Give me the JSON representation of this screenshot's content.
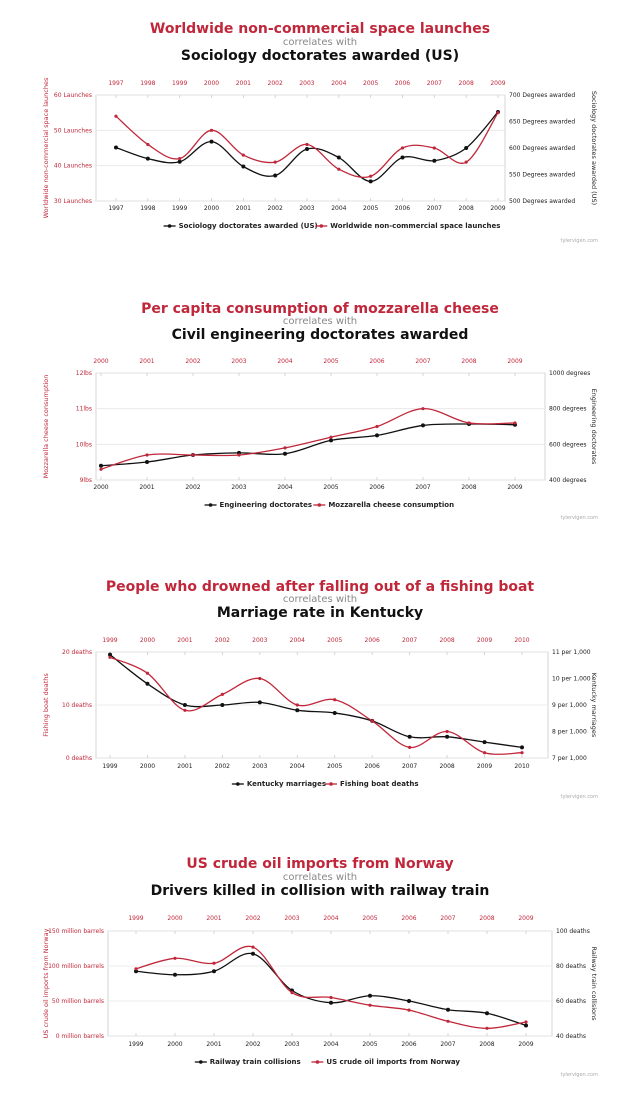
{
  "colors": {
    "red": "#c0273a",
    "black": "#111111",
    "subtitle": "#888888"
  },
  "credit": "tylervigen.com",
  "chart_data": [
    {
      "type": "line",
      "title": "Worldwide non-commercial space launches",
      "subtitle": "correlates with",
      "title2": "Sociology doctorates awarded (US)",
      "categories": [
        "1997",
        "1998",
        "1999",
        "2000",
        "2001",
        "2002",
        "2003",
        "2004",
        "2005",
        "2006",
        "2007",
        "2008",
        "2009"
      ],
      "left_axis": {
        "label": "Worldwide non-commercial space launches",
        "ticks": [
          "30 Launches",
          "40 Launches",
          "50 Launches",
          "60 Launches"
        ],
        "range": [
          30,
          60
        ]
      },
      "right_axis": {
        "label": "Sociology doctorates awarded (US)",
        "ticks": [
          "500 Degrees awarded",
          "550 Degrees awarded",
          "600 Degrees awarded",
          "650 Degrees awarded",
          "700 Degrees awarded"
        ],
        "range": [
          500,
          700
        ]
      },
      "series": [
        {
          "name": "Sociology doctorates awarded (US)",
          "color": "black",
          "axis": "right",
          "values": [
            601,
            580,
            574,
            612,
            565,
            548,
            598,
            582,
            537,
            582,
            576,
            600,
            668
          ]
        },
        {
          "name": "Worldwide non-commercial space launches",
          "color": "red",
          "axis": "left",
          "values": [
            54,
            46,
            42,
            50,
            43,
            41,
            46,
            39,
            37,
            45,
            45,
            41,
            55
          ]
        }
      ]
    },
    {
      "type": "line",
      "title": "Per capita consumption of mozzarella cheese",
      "subtitle": "correlates with",
      "title2": "Civil engineering doctorates awarded",
      "categories": [
        "2000",
        "2001",
        "2002",
        "2003",
        "2004",
        "2005",
        "2006",
        "2007",
        "2008",
        "2009"
      ],
      "left_axis": {
        "label": "Mozzarella cheese consumption",
        "ticks": [
          "9lbs",
          "10lbs",
          "11lbs",
          "12lbs"
        ],
        "range": [
          9,
          12
        ]
      },
      "right_axis": {
        "label": "Engineering doctorates",
        "ticks": [
          "400 degrees",
          "600 degrees",
          "800 degrees",
          "1000 degrees"
        ],
        "range": [
          400,
          1000
        ]
      },
      "series": [
        {
          "name": "Engineering doctorates",
          "color": "black",
          "axis": "right",
          "values": [
            480,
            501,
            540,
            552,
            547,
            622,
            650,
            706,
            714,
            710
          ]
        },
        {
          "name": "Mozzarella cheese consumption",
          "color": "red",
          "axis": "left",
          "values": [
            9.3,
            9.7,
            9.7,
            9.7,
            9.9,
            10.2,
            10.5,
            11.0,
            10.6,
            10.6
          ]
        }
      ]
    },
    {
      "type": "line",
      "title": "People who drowned after falling out of a fishing boat",
      "subtitle": "correlates with",
      "title2": "Marriage rate in Kentucky",
      "categories": [
        "1999",
        "2000",
        "2001",
        "2002",
        "2003",
        "2004",
        "2005",
        "2006",
        "2007",
        "2008",
        "2009",
        "2010"
      ],
      "left_axis": {
        "label": "Fishing boat deaths",
        "ticks": [
          "0 deaths",
          "10 deaths",
          "20 deaths"
        ],
        "range": [
          0,
          20
        ]
      },
      "right_axis": {
        "label": "Kentucky marriages",
        "ticks": [
          "7 per 1,000",
          "8 per 1,000",
          "9 per 1,000",
          "10 per 1,000",
          "11 per 1,000"
        ],
        "range": [
          7,
          11
        ]
      },
      "series": [
        {
          "name": "Kentucky marriages",
          "color": "black",
          "axis": "right",
          "values": [
            10.9,
            9.8,
            9.0,
            9.0,
            9.1,
            8.8,
            8.7,
            8.4,
            7.8,
            7.8,
            7.6,
            7.4
          ]
        },
        {
          "name": "Fishing boat deaths",
          "color": "red",
          "axis": "left",
          "values": [
            19,
            16,
            9,
            12,
            15,
            10,
            11,
            7,
            2,
            5,
            1,
            1
          ]
        }
      ]
    },
    {
      "type": "line",
      "title": "US crude oil imports from Norway",
      "subtitle": "correlates with",
      "title2": "Drivers killed in collision with railway train",
      "categories": [
        "1999",
        "2000",
        "2001",
        "2002",
        "2003",
        "2004",
        "2005",
        "2006",
        "2007",
        "2008",
        "2009"
      ],
      "left_axis": {
        "label": "US crude oil imports from Norway",
        "ticks": [
          "0 million barrels",
          "50 million barrels",
          "100 million barrels",
          "150 million barrels"
        ],
        "range": [
          0,
          150
        ]
      },
      "right_axis": {
        "label": "Railway train collisions",
        "ticks": [
          "40 deaths",
          "60 deaths",
          "80 deaths",
          "100 deaths"
        ],
        "range": [
          40,
          100
        ]
      },
      "series": [
        {
          "name": "Railway train collisions",
          "color": "black",
          "axis": "right",
          "values": [
            77,
            75,
            77,
            87,
            66,
            59,
            63,
            60,
            55,
            53,
            46
          ]
        },
        {
          "name": "US crude oil imports from Norway",
          "color": "red",
          "axis": "left",
          "values": [
            96,
            111,
            104,
            127,
            62,
            55,
            44,
            37,
            21,
            11,
            20
          ]
        }
      ]
    }
  ]
}
